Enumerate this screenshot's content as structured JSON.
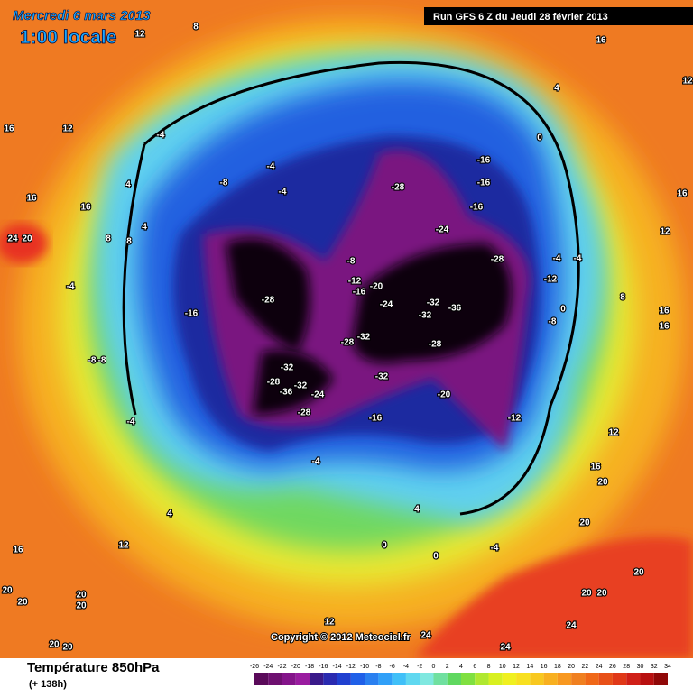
{
  "header": {
    "date": "Mercredi 6 mars 2013",
    "time": "1:00 locale",
    "run": "Run GFS 6 Z du Jeudi 28 février 2013"
  },
  "copyright": "Copyright © 2012 Meteociel.fr",
  "footer": {
    "title": "Température 850hPa",
    "lead": "(+ 138h)"
  },
  "map_labels": [
    8,
    12,
    16,
    12,
    -4,
    16,
    4,
    16,
    24,
    20,
    8,
    8,
    4,
    -4,
    -16,
    -8,
    -8,
    -4,
    -8,
    -4,
    -4,
    -28,
    -8,
    -12,
    -16,
    -20,
    -24,
    -28,
    -16,
    -16,
    -16,
    -24,
    -28,
    -32,
    -32,
    -36,
    -28,
    -32,
    -28,
    -32,
    -28,
    -32,
    -36,
    -24,
    -28,
    -32,
    -20,
    -16,
    -12,
    -12,
    -8,
    -4,
    -4,
    0,
    0,
    4,
    16,
    16,
    12,
    16,
    16,
    12,
    16,
    20,
    20,
    20,
    20,
    20,
    24,
    24,
    24,
    12,
    -4,
    0,
    0,
    4,
    12,
    16,
    20,
    20,
    20,
    20,
    20,
    20,
    4,
    -4,
    8,
    12
  ],
  "colorbar": {
    "ticks": [
      -26,
      -24,
      -22,
      -20,
      -18,
      -16,
      -14,
      -12,
      -10,
      -8,
      -6,
      -4,
      -2,
      0,
      2,
      4,
      6,
      8,
      10,
      12,
      14,
      16,
      18,
      20,
      22,
      24,
      26,
      28,
      30,
      32,
      34
    ],
    "colors": [
      "#5a0a5a",
      "#6e1070",
      "#84148a",
      "#9a1ca0",
      "#3a1a8a",
      "#2a2ab0",
      "#2040d0",
      "#2060e8",
      "#2a80f0",
      "#30a0f8",
      "#40c0f8",
      "#60d8f0",
      "#80e8e0",
      "#70e0a0",
      "#60d860",
      "#80e040",
      "#b0e830",
      "#d8f020",
      "#f0f020",
      "#f8e020",
      "#f8c820",
      "#f8b020",
      "#f89820",
      "#f08020",
      "#f06818",
      "#e85018",
      "#e03818",
      "#d02018",
      "#b81010",
      "#900808"
    ]
  }
}
